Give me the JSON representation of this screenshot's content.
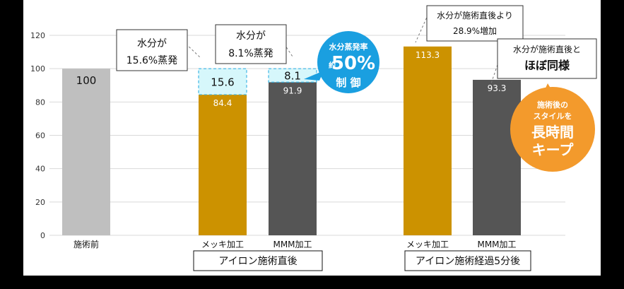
{
  "chart_data": {
    "type": "bar",
    "ylim": [
      0,
      120
    ],
    "yticks": [
      "0",
      "20",
      "40",
      "60",
      "80",
      "100",
      "120"
    ],
    "grid": true,
    "bars": [
      {
        "label": "施術前",
        "value": 100,
        "value_label": "100",
        "color": "#bfbfbf",
        "label_color": "#111111"
      },
      {
        "label": "メッキ加工",
        "value": 84.4,
        "value_label": "84.4",
        "color": "#cc9200",
        "label_color": "#ffffff",
        "evaporated": 15.6,
        "evaporated_label": "15.6"
      },
      {
        "label": "MMM加工",
        "value": 91.9,
        "value_label": "91.9",
        "color": "#555555",
        "label_color": "#ffffff",
        "evaporated": 8.1,
        "evaporated_label": "8.1"
      },
      {
        "label": "メッキ加工",
        "value": 113.3,
        "value_label": "113.3",
        "color": "#cc9200",
        "label_color": "#ffffff"
      },
      {
        "label": "MMM加工",
        "value": 93.3,
        "value_label": "93.3",
        "color": "#555555",
        "label_color": "#ffffff"
      }
    ],
    "groups": [
      "アイロン施術直後",
      "アイロン施術経過5分後"
    ],
    "callouts": [
      {
        "lines": [
          "水分が",
          "15.6%蒸発"
        ]
      },
      {
        "lines": [
          "水分が",
          "8.1%蒸発"
        ]
      },
      {
        "lines": [
          "水分が施術直後より",
          "28.9%増加"
        ]
      },
      {
        "lines": [
          "水分が施術直後と",
          "ほぼ同様"
        ]
      }
    ],
    "badge_blue": {
      "line1": "水分蒸発率",
      "prefix": "約",
      "big": "50%",
      "line3": "制 御"
    },
    "badge_orange": {
      "line1": "施術後の",
      "line2": "スタイルを",
      "line3": "長時間",
      "line4": "キープ"
    }
  },
  "colors": {
    "gold": "#cc9200",
    "dark": "#555555",
    "light": "#bfbfbf",
    "blue": "#1a9fe0",
    "orange": "#f39a2c",
    "evap_fill": "#d6f7fb",
    "evap_border": "#3fb6e6"
  }
}
